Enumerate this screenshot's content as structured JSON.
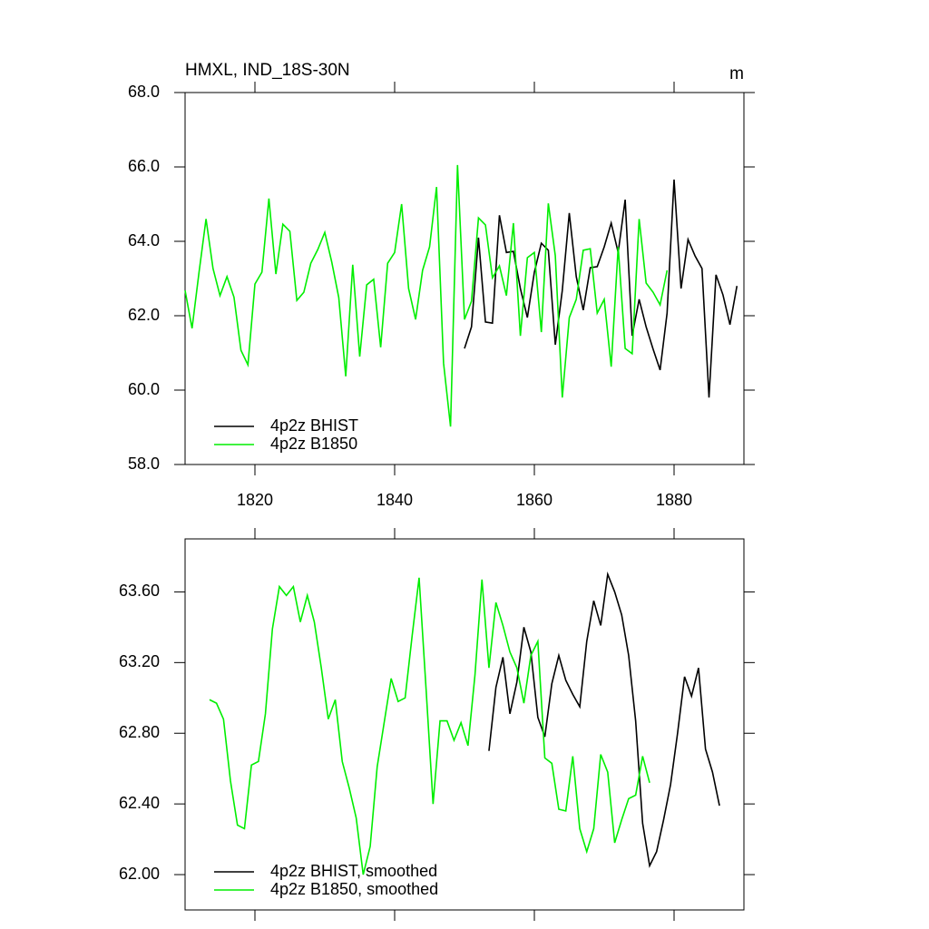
{
  "chart_data": [
    {
      "type": "line",
      "title": "HMXL, IND_18S-30N",
      "units": "m",
      "xlim": [
        1810,
        1890
      ],
      "xticks": [
        1820,
        1840,
        1860,
        1880
      ],
      "show_xtick_labels": true,
      "ylim": [
        58,
        68
      ],
      "yticks": [
        {
          "value": 58,
          "label": "58.0"
        },
        {
          "value": 60,
          "label": "60.0"
        },
        {
          "value": 62,
          "label": "62.0"
        },
        {
          "value": 64,
          "label": "64.0"
        },
        {
          "value": 66,
          "label": "66.0"
        },
        {
          "value": 68,
          "label": "68.0"
        }
      ],
      "legend": "lower left",
      "series": [
        {
          "name": "4p2z BHIST",
          "color": "#000000",
          "x": [
            1850,
            1851,
            1852,
            1853,
            1854,
            1855,
            1856,
            1857,
            1858,
            1859,
            1860,
            1861,
            1862,
            1863,
            1864,
            1865,
            1866,
            1867,
            1868,
            1869,
            1870,
            1871,
            1872,
            1873,
            1874,
            1875,
            1876,
            1877,
            1878,
            1879,
            1880,
            1881,
            1882,
            1883,
            1884,
            1885,
            1886,
            1887,
            1888,
            1889
          ],
          "values": [
            61.12,
            61.7,
            64.1,
            61.83,
            61.8,
            64.7,
            63.7,
            63.73,
            62.73,
            61.95,
            63.17,
            63.95,
            63.76,
            61.22,
            62.68,
            64.76,
            63.05,
            62.15,
            63.29,
            63.32,
            63.85,
            64.49,
            63.7,
            65.12,
            61.46,
            62.44,
            61.7,
            61.1,
            60.54,
            62.07,
            65.66,
            62.73,
            64.05,
            63.61,
            63.27,
            59.8,
            63.1,
            62.56,
            61.76,
            62.8
          ]
        },
        {
          "name": "4p2z B1850",
          "color": "#00ee00",
          "x": [
            1810,
            1811,
            1812,
            1813,
            1814,
            1815,
            1816,
            1817,
            1818,
            1819,
            1820,
            1821,
            1822,
            1823,
            1824,
            1825,
            1826,
            1827,
            1828,
            1829,
            1830,
            1831,
            1832,
            1833,
            1834,
            1835,
            1836,
            1837,
            1838,
            1839,
            1840,
            1841,
            1842,
            1843,
            1844,
            1845,
            1846,
            1847,
            1848,
            1849,
            1850,
            1851,
            1852,
            1853,
            1854,
            1855,
            1856,
            1857,
            1858,
            1859,
            1860,
            1861,
            1862,
            1863,
            1864,
            1865,
            1866,
            1867,
            1868,
            1869,
            1870,
            1871,
            1872,
            1873,
            1874,
            1875,
            1876,
            1877,
            1878,
            1879
          ],
          "values": [
            62.68,
            61.66,
            63.17,
            64.6,
            63.27,
            62.54,
            63.05,
            62.5,
            61.07,
            60.68,
            62.85,
            63.17,
            65.15,
            63.12,
            64.46,
            64.27,
            62.41,
            62.63,
            63.41,
            63.78,
            64.24,
            63.44,
            62.49,
            60.37,
            63.37,
            60.9,
            62.83,
            62.98,
            61.15,
            63.41,
            63.7,
            65.0,
            62.73,
            61.9,
            63.22,
            63.85,
            65.46,
            60.73,
            59.02,
            66.05,
            61.9,
            62.39,
            64.63,
            64.44,
            63.02,
            63.34,
            62.54,
            64.49,
            61.46,
            63.56,
            63.7,
            61.56,
            65.02,
            63.61,
            59.8,
            61.95,
            62.44,
            63.76,
            63.8,
            62.07,
            62.44,
            60.63,
            63.85,
            61.12,
            60.98,
            64.6,
            62.88,
            62.63,
            62.29,
            63.22
          ]
        }
      ]
    },
    {
      "type": "line",
      "xlim": [
        1810,
        1890
      ],
      "xticks": [
        1820,
        1840,
        1860,
        1880
      ],
      "show_xtick_labels": false,
      "ylim": [
        61.8,
        63.9
      ],
      "yticks": [
        {
          "value": 62,
          "label": "62.00"
        },
        {
          "value": 62.4,
          "label": "62.40"
        },
        {
          "value": 62.8,
          "label": "62.80"
        },
        {
          "value": 63.2,
          "label": "63.20"
        },
        {
          "value": 63.6,
          "label": "63.60"
        }
      ],
      "legend": "lower left",
      "series": [
        {
          "name": "4p2z BHIST, smoothed",
          "color": "#000000",
          "x": [
            1853.5,
            1854.5,
            1855.5,
            1856.5,
            1857.5,
            1858.5,
            1859.5,
            1860.5,
            1861.5,
            1862.5,
            1863.5,
            1864.5,
            1865.5,
            1866.5,
            1867.5,
            1868.5,
            1869.5,
            1870.5,
            1871.5,
            1872.5,
            1873.5,
            1874.5,
            1875.5,
            1876.5,
            1877.5,
            1878.5,
            1879.5,
            1880.5,
            1881.5,
            1882.5,
            1883.5,
            1884.5,
            1885.5,
            1886.5
          ],
          "values": [
            62.7,
            63.06,
            63.23,
            62.91,
            63.09,
            63.4,
            63.26,
            62.89,
            62.78,
            63.08,
            63.24,
            63.1,
            63.02,
            62.95,
            63.32,
            63.55,
            63.41,
            63.7,
            63.6,
            63.47,
            63.24,
            62.87,
            62.29,
            62.05,
            62.13,
            62.31,
            62.51,
            62.8,
            63.12,
            63.01,
            63.17,
            62.71,
            62.58,
            62.39
          ]
        },
        {
          "name": "4p2z B1850, smoothed",
          "color": "#00ee00",
          "x": [
            1813.5,
            1814.5,
            1815.5,
            1816.5,
            1817.5,
            1818.5,
            1819.5,
            1820.5,
            1821.5,
            1822.5,
            1823.5,
            1824.5,
            1825.5,
            1826.5,
            1827.5,
            1828.5,
            1829.5,
            1830.5,
            1831.5,
            1832.5,
            1833.5,
            1834.5,
            1835.5,
            1836.5,
            1837.5,
            1838.5,
            1839.5,
            1840.5,
            1841.5,
            1842.5,
            1843.5,
            1844.5,
            1845.5,
            1846.5,
            1847.5,
            1848.5,
            1849.5,
            1850.5,
            1851.5,
            1852.5,
            1853.5,
            1854.5,
            1855.5,
            1856.5,
            1857.5,
            1858.5,
            1859.5,
            1860.5,
            1861.5,
            1862.5,
            1863.5,
            1864.5,
            1865.5,
            1866.5,
            1867.5,
            1868.5,
            1869.5,
            1870.5,
            1871.5,
            1872.5,
            1873.5,
            1874.5,
            1875.5,
            1876.5
          ],
          "values": [
            62.99,
            62.97,
            62.88,
            62.53,
            62.28,
            62.26,
            62.62,
            62.64,
            62.91,
            63.39,
            63.63,
            63.58,
            63.63,
            63.43,
            63.58,
            63.43,
            63.17,
            62.88,
            62.99,
            62.64,
            62.49,
            62.32,
            62.0,
            62.16,
            62.61,
            62.86,
            63.11,
            62.98,
            63.0,
            63.35,
            63.68,
            63.05,
            62.4,
            62.87,
            62.87,
            62.76,
            62.86,
            62.73,
            63.13,
            63.67,
            63.17,
            63.54,
            63.41,
            63.26,
            63.17,
            62.97,
            63.24,
            63.32,
            62.66,
            62.63,
            62.37,
            62.36,
            62.67,
            62.26,
            62.13,
            62.26,
            62.68,
            62.58,
            62.18,
            62.31,
            62.43,
            62.45,
            62.67,
            62.52
          ]
        }
      ]
    }
  ]
}
